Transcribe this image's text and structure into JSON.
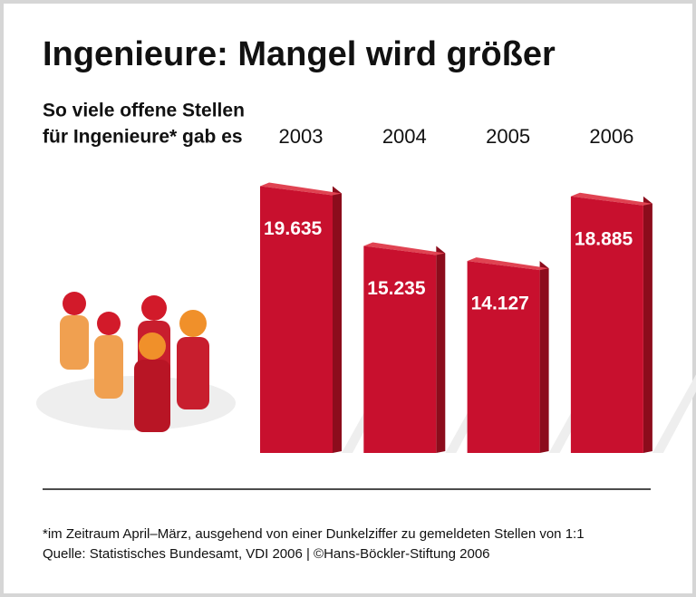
{
  "chart_data": {
    "type": "bar",
    "title": "Ingenieure: Mangel wird größer",
    "subtitle": [
      "So viele offene Stellen",
      "für Ingenieure* gab es"
    ],
    "categories": [
      "2003",
      "2004",
      "2005",
      "2006"
    ],
    "values": [
      19635,
      15235,
      14127,
      18885
    ],
    "value_labels": [
      "19.635",
      "15.235",
      "14.127",
      "18.885"
    ],
    "color": "#c8102e",
    "notes": [
      "*im Zeitraum April–März, ausgehend von einer Dunkelziffer zu gemeldeten Stellen von 1:1",
      "Quelle: Statistisches Bundesamt, VDI 2006 | ©Hans-Böckler-Stiftung 2006"
    ]
  }
}
